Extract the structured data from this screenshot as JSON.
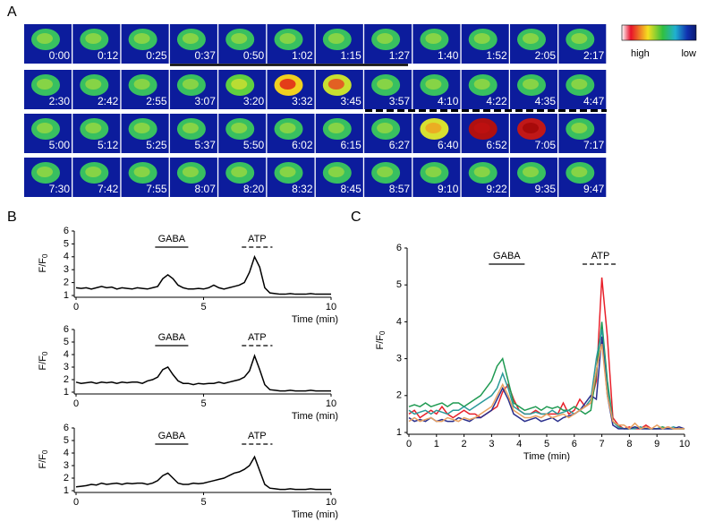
{
  "panel_labels": [
    "A",
    "B",
    "C"
  ],
  "panel_a": {
    "timestamps": [
      "0:00",
      "0:12",
      "0:25",
      "0:37",
      "0:50",
      "1:02",
      "1:15",
      "1:27",
      "1:40",
      "1:52",
      "2:05",
      "2:17",
      "2:30",
      "2:42",
      "2:55",
      "3:07",
      "3:20",
      "3:32",
      "3:45",
      "3:57",
      "4:10",
      "4:22",
      "4:35",
      "4:47",
      "5:00",
      "5:12",
      "5:25",
      "5:37",
      "5:50",
      "6:02",
      "6:15",
      "6:27",
      "6:40",
      "6:52",
      "7:05",
      "7:17",
      "7:30",
      "7:42",
      "7:55",
      "8:07",
      "8:20",
      "8:32",
      "8:45",
      "8:57",
      "9:10",
      "9:22",
      "9:35",
      "9:47"
    ],
    "colorbar": {
      "high": "high",
      "low": "low"
    }
  },
  "chart_data": [
    {
      "type": "line",
      "xlabel": "Time (min)",
      "ylabel": {
        "text": "F/F",
        "subscript": "0"
      },
      "x": [
        0,
        0.2,
        0.4,
        0.6,
        0.8,
        1,
        1.2,
        1.4,
        1.6,
        1.8,
        2,
        2.2,
        2.4,
        2.6,
        2.8,
        3,
        3.2,
        3.4,
        3.6,
        3.8,
        4,
        4.2,
        4.4,
        4.6,
        4.8,
        5,
        5.2,
        5.4,
        5.6,
        5.8,
        6,
        6.2,
        6.4,
        6.6,
        6.8,
        7,
        7.2,
        7.4,
        7.6,
        7.8,
        8,
        8.2,
        8.4,
        8.6,
        8.8,
        9,
        9.2,
        9.4,
        9.6,
        9.8,
        10
      ],
      "series": [
        {
          "color": "#000000",
          "values": [
            1.6,
            1.55,
            1.6,
            1.5,
            1.6,
            1.7,
            1.6,
            1.65,
            1.5,
            1.6,
            1.55,
            1.5,
            1.6,
            1.55,
            1.5,
            1.6,
            1.7,
            2.3,
            2.6,
            2.3,
            1.8,
            1.6,
            1.5,
            1.5,
            1.55,
            1.5,
            1.6,
            1.8,
            1.6,
            1.5,
            1.6,
            1.7,
            1.8,
            2.0,
            2.8,
            4.0,
            3.2,
            1.6,
            1.2,
            1.15,
            1.1,
            1.1,
            1.15,
            1.1,
            1.1,
            1.1,
            1.15,
            1.1,
            1.1,
            1.1,
            1.1
          ]
        }
      ],
      "xlim": [
        0,
        10
      ],
      "ylim": [
        1,
        6
      ],
      "xticks": [
        0,
        5,
        10
      ],
      "yticks": [
        1,
        2,
        3,
        4,
        5,
        6
      ],
      "annotations": [
        {
          "text": "GABA",
          "x": [
            3.1,
            4.4
          ],
          "style": "solid"
        },
        {
          "text": "ATP",
          "x": [
            6.5,
            7.7
          ],
          "style": "dashed"
        }
      ]
    },
    {
      "type": "line",
      "xlabel": "Time (min)",
      "ylabel": {
        "text": "F/F",
        "subscript": "0"
      },
      "x": [
        0,
        0.2,
        0.4,
        0.6,
        0.8,
        1,
        1.2,
        1.4,
        1.6,
        1.8,
        2,
        2.2,
        2.4,
        2.6,
        2.8,
        3,
        3.2,
        3.4,
        3.6,
        3.8,
        4,
        4.2,
        4.4,
        4.6,
        4.8,
        5,
        5.2,
        5.4,
        5.6,
        5.8,
        6,
        6.2,
        6.4,
        6.6,
        6.8,
        7,
        7.2,
        7.4,
        7.6,
        7.8,
        8,
        8.2,
        8.4,
        8.6,
        8.8,
        9,
        9.2,
        9.4,
        9.6,
        9.8,
        10
      ],
      "series": [
        {
          "color": "#000000",
          "values": [
            1.8,
            1.7,
            1.75,
            1.8,
            1.7,
            1.8,
            1.75,
            1.8,
            1.7,
            1.8,
            1.75,
            1.8,
            1.8,
            1.7,
            1.9,
            2.0,
            2.2,
            2.8,
            3.0,
            2.4,
            1.9,
            1.7,
            1.7,
            1.6,
            1.7,
            1.65,
            1.7,
            1.7,
            1.8,
            1.7,
            1.8,
            1.9,
            2.0,
            2.2,
            2.7,
            3.9,
            2.8,
            1.6,
            1.2,
            1.15,
            1.1,
            1.1,
            1.15,
            1.1,
            1.1,
            1.1,
            1.15,
            1.1,
            1.1,
            1.1,
            1.1
          ]
        }
      ],
      "xlim": [
        0,
        10
      ],
      "ylim": [
        1,
        6
      ],
      "xticks": [
        0,
        5,
        10
      ],
      "yticks": [
        1,
        2,
        3,
        4,
        5,
        6
      ],
      "annotations": [
        {
          "text": "GABA",
          "x": [
            3.1,
            4.4
          ],
          "style": "solid"
        },
        {
          "text": "ATP",
          "x": [
            6.5,
            7.7
          ],
          "style": "dashed"
        }
      ]
    },
    {
      "type": "line",
      "xlabel": "Time (min)",
      "ylabel": {
        "text": "F/F",
        "subscript": "0"
      },
      "x": [
        0,
        0.2,
        0.4,
        0.6,
        0.8,
        1,
        1.2,
        1.4,
        1.6,
        1.8,
        2,
        2.2,
        2.4,
        2.6,
        2.8,
        3,
        3.2,
        3.4,
        3.6,
        3.8,
        4,
        4.2,
        4.4,
        4.6,
        4.8,
        5,
        5.2,
        5.4,
        5.6,
        5.8,
        6,
        6.2,
        6.4,
        6.6,
        6.8,
        7,
        7.2,
        7.4,
        7.6,
        7.8,
        8,
        8.2,
        8.4,
        8.6,
        8.8,
        9,
        9.2,
        9.4,
        9.6,
        9.8,
        10
      ],
      "series": [
        {
          "color": "#000000",
          "values": [
            1.3,
            1.35,
            1.4,
            1.5,
            1.45,
            1.6,
            1.5,
            1.55,
            1.6,
            1.5,
            1.6,
            1.55,
            1.6,
            1.6,
            1.5,
            1.6,
            1.8,
            2.2,
            2.4,
            2.0,
            1.6,
            1.5,
            1.5,
            1.6,
            1.55,
            1.6,
            1.7,
            1.8,
            1.9,
            2.0,
            2.2,
            2.4,
            2.5,
            2.7,
            3.0,
            3.7,
            2.6,
            1.5,
            1.2,
            1.15,
            1.1,
            1.1,
            1.15,
            1.1,
            1.1,
            1.1,
            1.15,
            1.1,
            1.1,
            1.1,
            1.1
          ]
        }
      ],
      "xlim": [
        0,
        10
      ],
      "ylim": [
        1,
        6
      ],
      "xticks": [
        0,
        5,
        10
      ],
      "yticks": [
        1,
        2,
        3,
        4,
        5,
        6
      ],
      "annotations": [
        {
          "text": "GABA",
          "x": [
            3.1,
            4.4
          ],
          "style": "solid"
        },
        {
          "text": "ATP",
          "x": [
            6.5,
            7.7
          ],
          "style": "dashed"
        }
      ]
    },
    {
      "type": "line",
      "xlabel": "Time (min)",
      "ylabel": {
        "text": "F/F",
        "subscript": "0"
      },
      "x": [
        0,
        0.2,
        0.4,
        0.6,
        0.8,
        1,
        1.2,
        1.4,
        1.6,
        1.8,
        2,
        2.2,
        2.4,
        2.6,
        2.8,
        3,
        3.2,
        3.4,
        3.6,
        3.8,
        4,
        4.2,
        4.4,
        4.6,
        4.8,
        5,
        5.2,
        5.4,
        5.6,
        5.8,
        6,
        6.2,
        6.4,
        6.6,
        6.8,
        7,
        7.2,
        7.4,
        7.6,
        7.8,
        8,
        8.2,
        8.4,
        8.6,
        8.8,
        9,
        9.2,
        9.4,
        9.6,
        9.8,
        10
      ],
      "series": [
        {
          "color": "#e8202a",
          "values": [
            1.5,
            1.6,
            1.4,
            1.5,
            1.6,
            1.5,
            1.7,
            1.5,
            1.4,
            1.5,
            1.6,
            1.5,
            1.5,
            1.4,
            1.5,
            1.6,
            1.7,
            2.1,
            2.3,
            1.9,
            1.6,
            1.5,
            1.5,
            1.6,
            1.5,
            1.5,
            1.5,
            1.5,
            1.8,
            1.5,
            1.6,
            1.9,
            1.7,
            1.8,
            2.4,
            5.2,
            3.6,
            1.4,
            1.2,
            1.1,
            1.15,
            1.1,
            1.1,
            1.2,
            1.1,
            1.1,
            1.1,
            1.15,
            1.1,
            1.1,
            1.1
          ]
        },
        {
          "color": "#1f9a52",
          "values": [
            1.7,
            1.75,
            1.7,
            1.8,
            1.7,
            1.75,
            1.8,
            1.7,
            1.8,
            1.8,
            1.7,
            1.8,
            1.9,
            2.0,
            2.2,
            2.4,
            2.8,
            3.0,
            2.4,
            1.8,
            1.7,
            1.6,
            1.65,
            1.7,
            1.6,
            1.7,
            1.65,
            1.7,
            1.6,
            1.6,
            1.7,
            1.6,
            1.5,
            1.6,
            2.6,
            4.0,
            2.4,
            1.3,
            1.15,
            1.1,
            1.1,
            1.15,
            1.1,
            1.1,
            1.1,
            1.1,
            1.15,
            1.1,
            1.1,
            1.1,
            1.1
          ]
        },
        {
          "color": "#2a9a9a",
          "values": [
            1.6,
            1.5,
            1.55,
            1.6,
            1.5,
            1.6,
            1.55,
            1.5,
            1.6,
            1.6,
            1.7,
            1.6,
            1.7,
            1.8,
            1.9,
            2.0,
            2.2,
            2.6,
            2.2,
            1.7,
            1.6,
            1.5,
            1.5,
            1.55,
            1.5,
            1.5,
            1.6,
            1.5,
            1.55,
            1.6,
            1.5,
            1.6,
            1.7,
            1.9,
            3.0,
            3.8,
            2.2,
            1.3,
            1.15,
            1.1,
            1.1,
            1.1,
            1.15,
            1.1,
            1.1,
            1.1,
            1.1,
            1.1,
            1.15,
            1.1,
            1.1
          ]
        },
        {
          "color": "#2a2f8c",
          "values": [
            1.4,
            1.3,
            1.35,
            1.3,
            1.4,
            1.3,
            1.35,
            1.3,
            1.3,
            1.4,
            1.35,
            1.3,
            1.4,
            1.4,
            1.5,
            1.6,
            1.9,
            2.2,
            1.9,
            1.5,
            1.4,
            1.3,
            1.35,
            1.4,
            1.3,
            1.35,
            1.4,
            1.3,
            1.4,
            1.45,
            1.5,
            1.6,
            1.8,
            2.0,
            1.9,
            3.6,
            2.0,
            1.2,
            1.1,
            1.1,
            1.1,
            1.15,
            1.1,
            1.1,
            1.1,
            1.1,
            1.1,
            1.1,
            1.1,
            1.15,
            1.1
          ]
        },
        {
          "color": "#e8a060",
          "values": [
            1.3,
            1.4,
            1.3,
            1.35,
            1.4,
            1.3,
            1.3,
            1.4,
            1.35,
            1.3,
            1.4,
            1.35,
            1.4,
            1.5,
            1.6,
            1.7,
            2.0,
            2.3,
            2.0,
            1.6,
            1.5,
            1.4,
            1.4,
            1.45,
            1.4,
            1.5,
            1.4,
            1.45,
            1.5,
            1.4,
            1.5,
            1.6,
            1.7,
            1.8,
            2.7,
            3.4,
            2.0,
            1.3,
            1.2,
            1.2,
            1.1,
            1.25,
            1.1,
            1.15,
            1.1,
            1.2,
            1.1,
            1.15,
            1.1,
            1.1,
            1.1
          ]
        }
      ],
      "xlim": [
        0,
        10
      ],
      "ylim": [
        1,
        6
      ],
      "xticks": [
        0,
        1,
        2,
        3,
        4,
        5,
        6,
        7,
        8,
        9,
        10
      ],
      "yticks": [
        1,
        2,
        3,
        4,
        5,
        6
      ],
      "annotations": [
        {
          "text": "GABA",
          "x": [
            2.9,
            4.2
          ],
          "style": "solid"
        },
        {
          "text": "ATP",
          "x": [
            6.3,
            7.6
          ],
          "style": "dashed"
        }
      ]
    }
  ]
}
